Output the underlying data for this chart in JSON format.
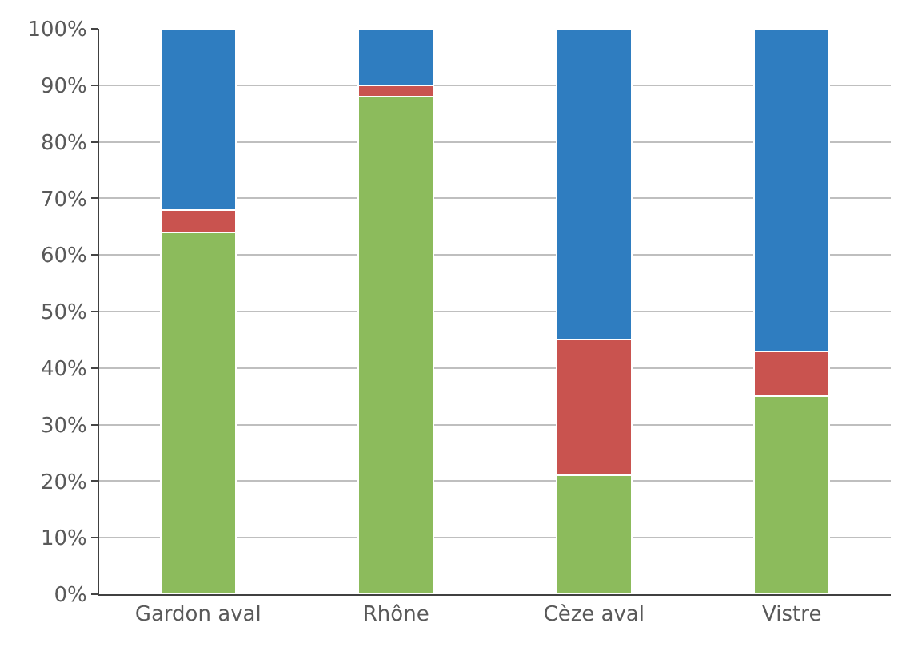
{
  "chart_data": {
    "type": "bar",
    "stacked": true,
    "categories": [
      "Gardon aval",
      "Rhône",
      "Cèze aval",
      "Vistre"
    ],
    "series": [
      {
        "color": "#8cbb5c",
        "values": [
          64,
          88,
          21,
          35
        ]
      },
      {
        "color": "#c9534f",
        "values": [
          4,
          2,
          24,
          8
        ]
      },
      {
        "color": "#2f7dc0",
        "values": [
          32,
          10,
          55,
          57
        ]
      }
    ],
    "ylim": [
      0,
      100
    ],
    "yticks": [
      {
        "value": 0,
        "label": "0%"
      },
      {
        "value": 10,
        "label": "10%"
      },
      {
        "value": 20,
        "label": "20%"
      },
      {
        "value": 30,
        "label": "30%"
      },
      {
        "value": 40,
        "label": "40%"
      },
      {
        "value": 50,
        "label": "50%"
      },
      {
        "value": 60,
        "label": "60%"
      },
      {
        "value": 70,
        "label": "70%"
      },
      {
        "value": 80,
        "label": "80%"
      },
      {
        "value": 90,
        "label": "90%"
      },
      {
        "value": 100,
        "label": "100%"
      }
    ],
    "grid": "y"
  }
}
